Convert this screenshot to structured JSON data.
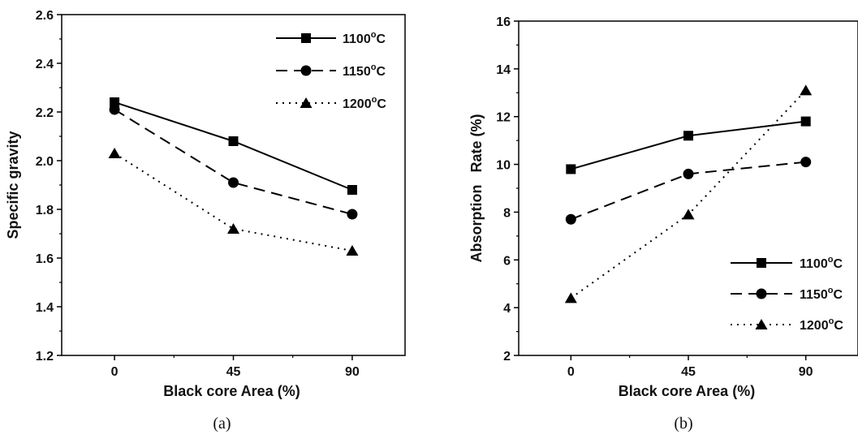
{
  "chart_data": [
    {
      "type": "line",
      "panel_label": "(a)",
      "x": [
        0,
        45,
        90
      ],
      "x_ticks": [
        "0",
        "45",
        "90"
      ],
      "xlim": [
        -20,
        110
      ],
      "xlabel": "Black core Area (%)",
      "ylabel": "Specific gravity",
      "ylim": [
        1.2,
        2.6
      ],
      "y_ticks": [
        "1.2",
        "1.4",
        "1.6",
        "1.8",
        "2.0",
        "2.2",
        "2.4",
        "2.6"
      ],
      "legend_position": "top-right",
      "series": [
        {
          "name": "1100",
          "name_sup": "o",
          "name_suffix": "C",
          "marker": "square",
          "dash": "solid",
          "values": [
            2.24,
            2.08,
            1.88
          ]
        },
        {
          "name": "1150",
          "name_sup": "o",
          "name_suffix": "C",
          "marker": "circle",
          "dash": "dash",
          "values": [
            2.21,
            1.91,
            1.78
          ]
        },
        {
          "name": "1200",
          "name_sup": "o",
          "name_suffix": "C",
          "marker": "triangle",
          "dash": "dot",
          "values": [
            2.03,
            1.72,
            1.63
          ]
        }
      ]
    },
    {
      "type": "line",
      "panel_label": "(b)",
      "x": [
        0,
        45,
        90
      ],
      "x_ticks": [
        "0",
        "45",
        "90"
      ],
      "xlim": [
        -20,
        110
      ],
      "xlabel": "Black core Area (%)",
      "ylabel": "Absorption   Rate (%)",
      "ylim": [
        2,
        16
      ],
      "y_ticks": [
        "2",
        "4",
        "6",
        "8",
        "10",
        "12",
        "14",
        "16"
      ],
      "legend_position": "bottom-right",
      "series": [
        {
          "name": "1100",
          "name_sup": "o",
          "name_suffix": "C",
          "marker": "square",
          "dash": "solid",
          "values": [
            9.8,
            11.2,
            11.8
          ]
        },
        {
          "name": "1150",
          "name_sup": "o",
          "name_suffix": "C",
          "marker": "circle",
          "dash": "dash",
          "values": [
            7.7,
            9.6,
            10.1
          ]
        },
        {
          "name": "1200",
          "name_sup": "o",
          "name_suffix": "C",
          "marker": "triangle",
          "dash": "dot",
          "values": [
            4.4,
            7.9,
            13.1
          ]
        }
      ]
    }
  ]
}
